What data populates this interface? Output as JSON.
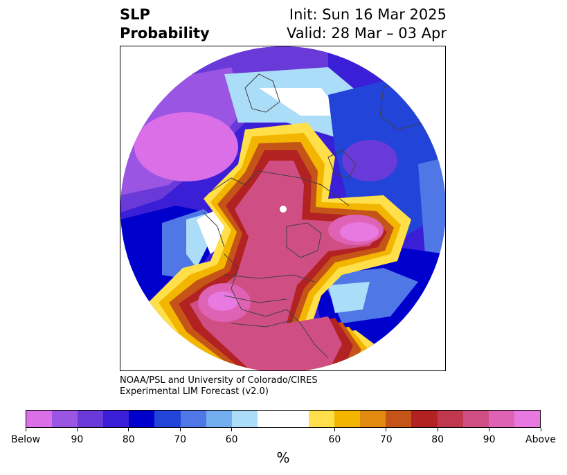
{
  "title": {
    "left_line1": "SLP",
    "left_line2": "Probability",
    "right_line1": "Init: Sun 16 Mar 2025",
    "right_line2": "Valid: 28 Mar – 03 Apr"
  },
  "credit": {
    "line1": "NOAA/PSL and University of Colorado/CIRES",
    "line2": "Experimental LIM Forecast (v2.0)"
  },
  "colorbar": {
    "colors": [
      "#da6fe8",
      "#9a56e2",
      "#6a3ad8",
      "#3a1fd6",
      "#0000cd",
      "#2244d8",
      "#4f78e6",
      "#73aef0",
      "#abdcf8",
      "#ffffff",
      "#ffffff",
      "#ffe04a",
      "#f2b500",
      "#e08a10",
      "#c55418",
      "#b22222",
      "#c0384f",
      "#cf4f84",
      "#de63b4",
      "#e879e0"
    ],
    "tick_labels": [
      "Below",
      "90",
      "80",
      "70",
      "60",
      "60",
      "70",
      "80",
      "90",
      "Above"
    ],
    "unit_label": "%"
  },
  "map": {
    "projection": "north polar stereographic",
    "background": "#ffffff",
    "coastline_color": "#404040",
    "pole_marker_color": "#ffffff",
    "regions": [
      {
        "name": "north-pacific-below",
        "category": "Below",
        "color": "#da6fe8"
      },
      {
        "name": "pacific-blue-band",
        "category": "80",
        "color": "#0000cd"
      },
      {
        "name": "europe-below",
        "category": "80",
        "color": "#3a1fd6"
      },
      {
        "name": "arctic-above",
        "category": "80",
        "color": "#b22222"
      },
      {
        "name": "north-america-above",
        "category": "90",
        "color": "#de63b4"
      },
      {
        "name": "siberia-above",
        "category": "Above",
        "color": "#e879e0"
      }
    ]
  }
}
